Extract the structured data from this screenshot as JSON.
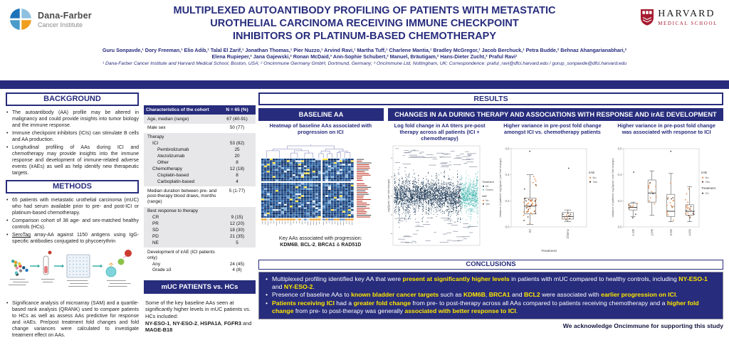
{
  "brand": {
    "dana_farber": {
      "name": "Dana-Farber",
      "sub": "Cancer Institute"
    },
    "harvard": {
      "name": "HARVARD",
      "sub": "MEDICAL SCHOOL"
    }
  },
  "header": {
    "title_lines": [
      "MULTIPLEXED AUTOANTIBODY PROFILING OF PATIENTS WITH METASTATIC",
      "UROTHELIAL CARCINOMA RECEIVING IMMUNE CHECKPOINT",
      "INHIBITORS OR PLATINUM-BASED CHEMOTHERAPY"
    ],
    "authors_line1": "Guru Sonpavde,¹ Dory Freeman,¹ Elio Adib,¹ Talal El Zarif,¹ Jonathan Thomas,¹ Pier Nuzzo,¹ Arvind Ravi,¹ Martha Tuff,¹ Charlene Mantia,¹ Bradley McGregor,¹ Jacob Berchuck,¹ Petra Budde,² Behnaz Ahangarianabhari,²",
    "authors_line2": "Elena Rupieper,² Jana Gajewski,² Ronan McDaid,³ Ann-Sophie Schubert,² Manuel, Bräutigam,² Hans-Dieter Zucht,² Praful Ravi¹",
    "affiliations": "¹ Dana-Farber Cancer Institute and Harvard Medical School, Boston, USA; ² Oncimmune Germany GmbH, Dortmund, Germany; ³ Oncimmune Ltd, Nottingham, UK; Correspondence: praful_ravi@dfci.harvard.edu / gurup_sonpavde@dfci.harvard.edu"
  },
  "background": {
    "title": "BACKGROUND",
    "bullets": [
      "The autoantibody (AA) profile may be altered in malignancy and could provide insights into tumor biology and the immune response.",
      "Immune checkpoint inhibitors (ICIs) can stimulate B cells and AA production.",
      "Longitudinal profiling of AAs during ICI and chemotherapy may provide insights into the immune response and development of immune-related adverse events (irAEs) as well as help identify new therapeutic targets."
    ]
  },
  "methods": {
    "title": "METHODS",
    "bullets_pre": [
      "65 patients with metastatic urothelial carcinoma (mUC) who had serum available prior to pre- and post-ICI or platinum-based chemotherapy.",
      "Comparison cohort of 38 age- and sex-matched healthy controls (HCs).",
      [
        {
          "t": "SeroTag",
          "u": 1
        },
        {
          "t": " array-AA against 1150 antigens using IgG-specific antibodies conjugated to phycoerythrin"
        }
      ]
    ],
    "bullets_post": [
      "Significance analysis of microarray (SAM) and a quartile-based rank analysis (QRANK) used to compare patients to HCs as well as assess AAs predictive for response and irAEs. Pre/post treatment fold changes and fold change variances were calculated to investigate treatment effect on AAs."
    ]
  },
  "cohort_table": {
    "header": [
      "Characteristics of the cohort",
      "N = 65 (%)"
    ],
    "groups": [
      {
        "rows": [
          {
            "label": "Age, median (range)",
            "value": "67 (40-91)",
            "indent": 0
          }
        ]
      },
      {
        "rows": [
          {
            "label": "Male sex",
            "value": "50 (77)",
            "indent": 0
          }
        ]
      },
      {
        "rows": [
          {
            "label": "Therapy",
            "value": "",
            "indent": 0
          },
          {
            "label": "ICI",
            "value": "53 (82)",
            "indent": 1
          },
          {
            "label": "Pembrolizumab",
            "value": "25",
            "indent": 2
          },
          {
            "label": "Atezolizumab",
            "value": "20",
            "indent": 2
          },
          {
            "label": "Other",
            "value": "8",
            "indent": 2
          },
          {
            "label": "Chemotherapy",
            "value": "12 (18)",
            "indent": 1
          },
          {
            "label": "Cisplatin-based",
            "value": "8",
            "indent": 2
          },
          {
            "label": "Carboplatin-based",
            "value": "4",
            "indent": 2
          }
        ]
      },
      {
        "rows": [
          {
            "label": "Median duration between pre- and post-therapy blood draws, months (range)",
            "value": "5 (1-77)",
            "indent": 0
          }
        ]
      },
      {
        "rows": [
          {
            "label": "Best response to therapy",
            "value": "",
            "indent": 0
          },
          {
            "label": "CR",
            "value": "9 (15)",
            "indent": 1
          },
          {
            "label": "PR",
            "value": "12 (20)",
            "indent": 1
          },
          {
            "label": "SD",
            "value": "18 (30)",
            "indent": 1
          },
          {
            "label": "PD",
            "value": "21 (35)",
            "indent": 1
          },
          {
            "label": "NE",
            "value": "5",
            "indent": 1
          }
        ]
      },
      {
        "rows": [
          {
            "label": "Development of irAE (ICI patients only)",
            "value": "",
            "indent": 0
          },
          {
            "label": "Any",
            "value": "24 (45)",
            "indent": 1
          },
          {
            "label": "Grade ≥3",
            "value": "4 (8)",
            "indent": 1
          }
        ]
      }
    ]
  },
  "muc_vs_hc": {
    "title": "mUC PATIENTS vs. HCs",
    "body": [
      {
        "t": "Some of the key baseline AAs seen at significantly higher levels in mUC patients vs. HCs included:\n"
      },
      {
        "t": "NY-ESO-1",
        "b": 1
      },
      {
        "t": ", "
      },
      {
        "t": "NY-ESO-2",
        "b": 1
      },
      {
        "t": ", "
      },
      {
        "t": "HSPA1A",
        "b": 1
      },
      {
        "t": ", "
      },
      {
        "t": "FGFR3",
        "b": 1
      },
      {
        "t": " and "
      },
      {
        "t": "MAGE-B18",
        "b": 1
      }
    ]
  },
  "results": {
    "title": "RESULTS",
    "baseline_bar": "BASELINE AA",
    "changes_bar": "CHANGES IN AA DURING THERAPY AND ASSOCIATIONS WITH RESPONSE AND irAE DEVELOPMENT",
    "key_aas": [
      {
        "t": "Key AAs associated with progression:\n"
      },
      {
        "t": "KDM6B",
        "b": 1
      },
      {
        "t": ", "
      },
      {
        "t": "BCL-2",
        "b": 1
      },
      {
        "t": ", "
      },
      {
        "t": "BRCA1",
        "b": 1
      },
      {
        "t": " & "
      },
      {
        "t": "RAD51D",
        "b": 1
      }
    ]
  },
  "panels": {
    "p1_title": "Heatmap of baseline AAs associated with progression on ICI",
    "p2_title": "Log fold change in AA titers pre-post therapy across all patients (ICI + chemotherapy)",
    "p3_title": "Higher variance in pre-post fold change amongst ICI vs. chemotherapy patients",
    "p4_title": "Higher variance in pre-post fold change was associated with response to ICI"
  },
  "conclusions": {
    "title": "CONCLUSIONS",
    "items": [
      [
        {
          "t": "Multiplexed profiling identified key AA that were "
        },
        {
          "t": "present at significantly higher levels",
          "h": 1
        },
        {
          "t": " in patients with mUC compared to healthy controls, including "
        },
        {
          "t": "NY-ESO-1",
          "h": 1
        },
        {
          "t": " and "
        },
        {
          "t": "NY-ESO-2",
          "h": 1
        },
        {
          "t": "."
        }
      ],
      [
        {
          "t": "Presence of baseline AAs to "
        },
        {
          "t": "known bladder cancer targets",
          "h": 1
        },
        {
          "t": " such as "
        },
        {
          "t": "KDM6B",
          "h": 1
        },
        {
          "t": ", "
        },
        {
          "t": "BRCA1",
          "h": 1
        },
        {
          "t": " and "
        },
        {
          "t": "BCL2",
          "h": 1
        },
        {
          "t": " were associated with "
        },
        {
          "t": "earlier progression on ICI",
          "h": 1
        },
        {
          "t": "."
        }
      ],
      [
        {
          "t": "Patients receiving ICI",
          "h": 1
        },
        {
          "t": " had a "
        },
        {
          "t": "greater fold change",
          "h": 1
        },
        {
          "t": " from pre- to post-therapy across all AAs compared to patients receiving chemotherapy and a "
        },
        {
          "t": "higher fold change",
          "h": 1
        },
        {
          "t": " from pre- to post-therapy was generally "
        },
        {
          "t": "associated with better response to ICI",
          "h": 1
        },
        {
          "t": "."
        }
      ]
    ]
  },
  "acknowledgment": "We acknowledge Oncimmune for supporting this study",
  "colors": {
    "navy": "#272c7c",
    "highlight_yellow": "#ffe600",
    "heat_low": "#0a2d62",
    "heat_high": "#ffdf3d",
    "ici_strip": "#16324f",
    "chemo_strip": "#49b8b2",
    "point_no_irae": "#e2823a",
    "point_yes_irae": "#5b3a29",
    "harvard_red": "#a51c30",
    "df_blue": "#1e73b8",
    "df_orange": "#f09e1f"
  },
  "chart_data": [
    {
      "id": "baseline-aa-heatmap",
      "type": "heatmap",
      "title": "Heatmap of baseline AAs associated with progression on ICI",
      "description": "Column-clustered heatmap (dendrogram on top) of baseline AA reactivity in ICI-treated patients; predominantly low titers (dark blue) with scattered high titers (light blue / yellow); orange bottom annotation row; AA row labels listed on the right",
      "n_rows": 34,
      "n_cols": 32,
      "colorscale_low_to_high": [
        "#0a2d62",
        "#1d5596",
        "#2f6fb2",
        "#79a9d4",
        "#d9e7f3",
        "#ffdf3d"
      ],
      "key_labels": [
        "KDM6B",
        "BCL-2",
        "BRCA1",
        "RAD51D"
      ]
    },
    {
      "id": "logfold-strip",
      "type": "scatter",
      "title": "Log fold change in AA titers pre-post therapy across all patients (ICI + chemotherapy)",
      "ylabel": "log2(post / pre fold change)",
      "description": "Per-patient vertical strips of log2 pre-to-post fold changes across all AAs; ICI patients (dark navy, left) show wider spread than chemotherapy patients (teal, right); extreme AAs carry tiny text annotations",
      "groups": [
        {
          "name": "ICI",
          "color": "#16324f",
          "n_strips": 70
        },
        {
          "name": "Chemo",
          "color": "#49b8b2",
          "n_strips": 18
        }
      ],
      "legend": {
        "treatment": [
          "ICI",
          "Chemo"
        ],
        "irae": [
          "No",
          "Yes"
        ]
      }
    },
    {
      "id": "variance-by-treatment",
      "type": "box",
      "title": "Higher variance in pre-post fold change amongst ICI vs. chemotherapy patients",
      "xlabel": "Treatment",
      "ylabel": "Variance of patients' log2(post / pre fold change)",
      "ylim": [
        0,
        0.6
      ],
      "yticks": [
        0,
        0.2,
        0.4,
        0.6
      ],
      "categories": [
        "ICI",
        "Chemo"
      ],
      "legend": {
        "irae": [
          "No",
          "Yes"
        ]
      },
      "boxes": [
        {
          "category": "ICI",
          "whisker_low": 0.02,
          "q1": 0.1,
          "median": 0.16,
          "q3": 0.22,
          "whisker_high": 0.4,
          "outliers": [
            0.58
          ],
          "n_points": 50,
          "irae_yes_frac": 0.3
        },
        {
          "category": "Chemo",
          "whisker_low": 0.04,
          "q1": 0.06,
          "median": 0.08,
          "q3": 0.11,
          "whisker_high": 0.13,
          "outliers": [
            0.45
          ],
          "n_points": 10,
          "irae_yes_frac": 0.6
        }
      ]
    },
    {
      "id": "variance-by-response",
      "type": "box",
      "title": "Higher variance in pre-post fold change was associated with response to ICI",
      "xlabel": "",
      "ylabel": "Variance of patients' log2(post / pre fold change)",
      "ylim": [
        0,
        0.6
      ],
      "yticks": [
        0,
        0.2,
        0.4,
        0.6
      ],
      "categories": [
        "1-CR",
        "2-PR",
        "3-SD",
        "4-PD"
      ],
      "legend": {
        "irae": [
          "No",
          "Yes"
        ],
        "treatment": [
          "ICI"
        ]
      },
      "boxes": [
        {
          "category": "1-CR",
          "whisker_low": 0.08,
          "q1": 0.13,
          "median": 0.15,
          "q3": 0.18,
          "whisker_high": 0.19,
          "outliers": [
            0.42,
            0.07
          ],
          "n_points": 9,
          "irae_yes_frac": 0.4
        },
        {
          "category": "2-PR",
          "whisker_low": 0.09,
          "q1": 0.19,
          "median": 0.26,
          "q3": 0.36,
          "whisker_high": 0.43,
          "outliers": [],
          "n_points": 12,
          "irae_yes_frac": 0.4
        },
        {
          "category": "3-SD",
          "whisker_low": 0.04,
          "q1": 0.08,
          "median": 0.12,
          "q3": 0.25,
          "whisker_high": 0.41,
          "outliers": [
            0.58
          ],
          "n_points": 18,
          "irae_yes_frac": 0.35
        },
        {
          "category": "4-PD",
          "whisker_low": 0.04,
          "q1": 0.09,
          "median": 0.12,
          "q3": 0.17,
          "whisker_high": 0.31,
          "outliers": [],
          "n_points": 21,
          "irae_yes_frac": 0.35
        }
      ]
    }
  ]
}
